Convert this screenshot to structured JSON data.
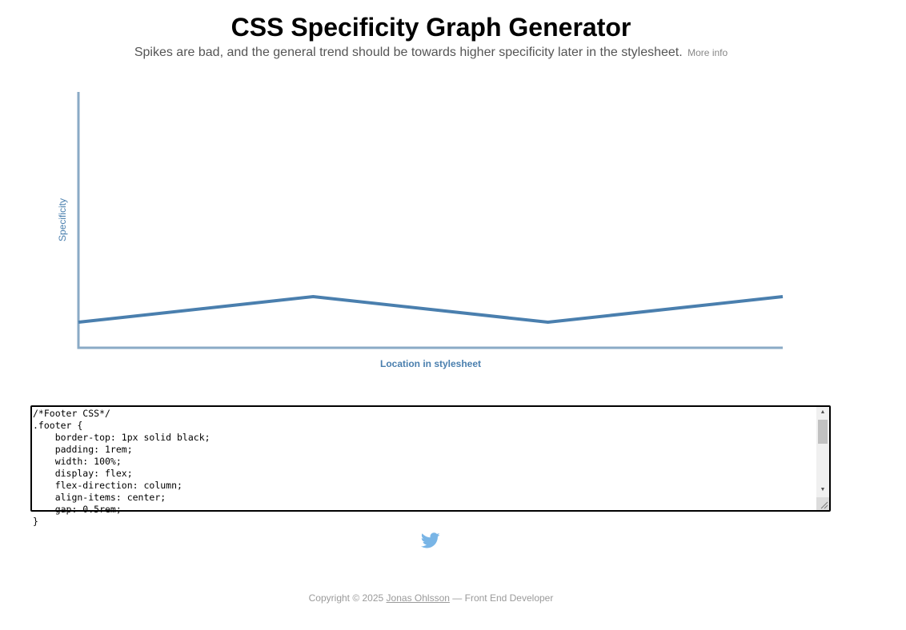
{
  "header": {
    "title": "CSS Specificity Graph Generator",
    "subtitle": "Spikes are bad, and the general trend should be towards higher specificity later in the stylesheet.",
    "more_info_label": "More info"
  },
  "chart_data": {
    "type": "line",
    "title": "",
    "xlabel": "Location in stylesheet",
    "ylabel": "Specificity",
    "x": [
      0,
      1,
      2,
      3
    ],
    "values": [
      1,
      2,
      1,
      2
    ],
    "ylim": [
      0,
      10
    ],
    "grid": false,
    "colors": {
      "line": "#4a7fae",
      "axis": "#8aaac6",
      "label": "#4a7fae"
    }
  },
  "editor": {
    "content": "/*Footer CSS*/\n.footer {\n    border-top: 1px solid black;\n    padding: 1rem;\n    width: 100%;\n    display: flex;\n    flex-direction: column;\n    align-items: center;\n    gap: 0.5rem;\n}"
  },
  "social": {
    "icon": "twitter-icon",
    "color": "#79b5e6"
  },
  "footer": {
    "copyright": "Copyright © 2025",
    "author": "Jonas Ohlsson",
    "role": "— Front End Developer"
  }
}
